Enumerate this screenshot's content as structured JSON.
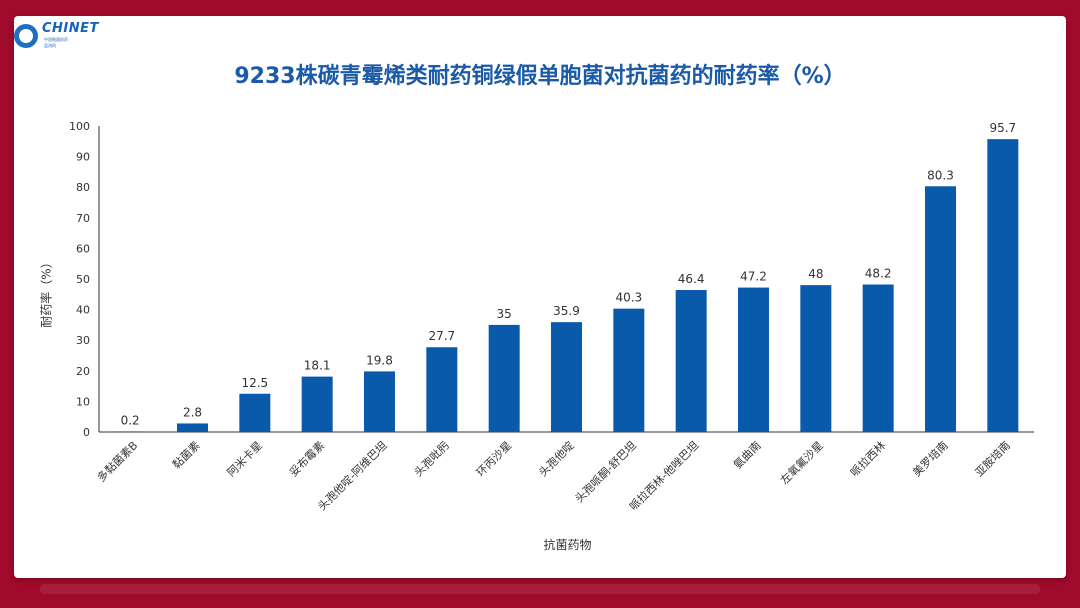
{
  "header": {
    "logo_text": "CHINET",
    "logo_sub1": "中国细菌耐药",
    "logo_sub2": "监测网"
  },
  "colors": {
    "background": "#a00a2c",
    "bar": "#0a5aab",
    "title": "#1b5aa8"
  },
  "chart_data": {
    "type": "bar",
    "title": "9233株碳青霉烯类耐药铜绿假单胞菌对抗菌药的耐药率（%）",
    "xlabel": "抗菌药物",
    "ylabel": "耐药率（%）",
    "ylim": [
      0,
      100
    ],
    "yticks": [
      0,
      10,
      20,
      30,
      40,
      50,
      60,
      70,
      80,
      90,
      100
    ],
    "grid": false,
    "categories": [
      "多黏菌素B",
      "黏菌素",
      "阿米卡星",
      "妥布霉素",
      "头孢他啶-阿维巴坦",
      "头孢吡肟",
      "环丙沙星",
      "头孢他啶",
      "头孢哌酮-舒巴坦",
      "哌拉西林-他唑巴坦",
      "氨曲南",
      "左氧氟沙星",
      "哌拉西林",
      "美罗培南",
      "亚胺培南"
    ],
    "values": [
      0.2,
      2.8,
      12.5,
      18.1,
      19.8,
      27.7,
      35,
      35.9,
      40.3,
      46.4,
      47.2,
      48,
      48.2,
      80.3,
      95.7
    ],
    "data_labels": [
      "0.2",
      "2.8",
      "12.5",
      "18.1",
      "19.8",
      "27.7",
      "35",
      "35.9",
      "40.3",
      "46.4",
      "47.2",
      "48",
      "48.2",
      "80.3",
      "95.7"
    ]
  }
}
